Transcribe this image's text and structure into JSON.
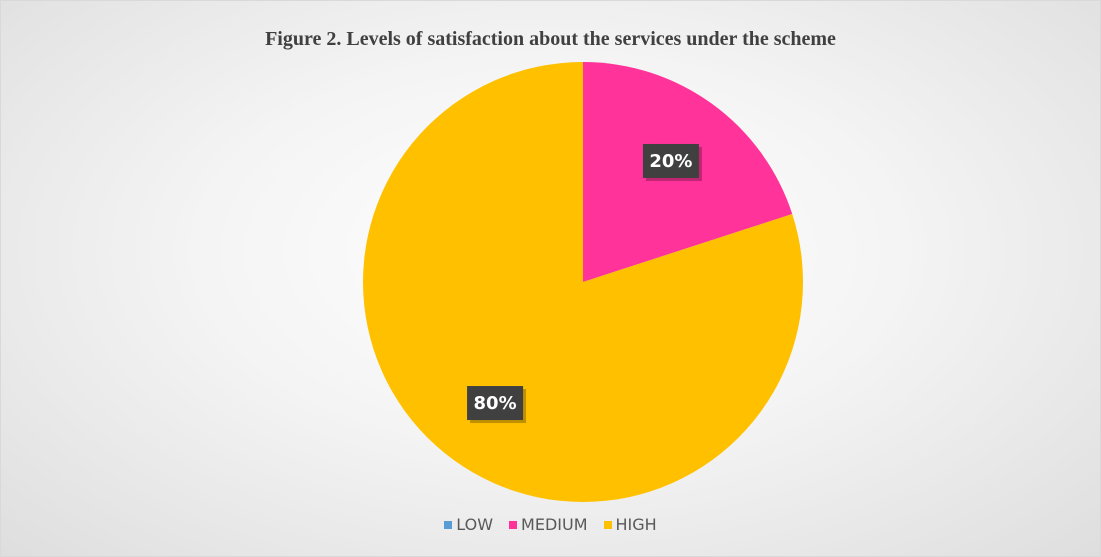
{
  "chart_data": {
    "type": "pie",
    "title": "Figure 2. Levels of satisfaction about the services under the scheme",
    "categories": [
      "LOW",
      "MEDIUM",
      "HIGH"
    ],
    "values": [
      0,
      20,
      80
    ],
    "data_labels": [
      "",
      "20%",
      "80%"
    ],
    "colors": [
      "#5b9bd5",
      "#ff3399",
      "#ffc000"
    ],
    "legend_position": "bottom"
  }
}
